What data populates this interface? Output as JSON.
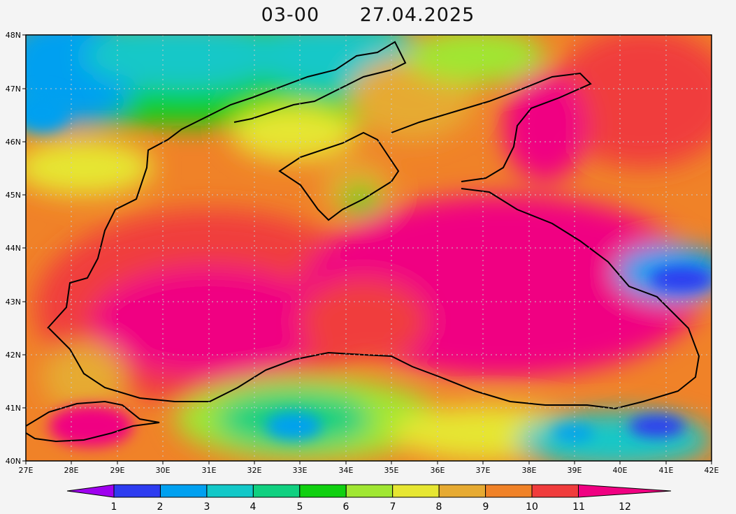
{
  "title": {
    "time": "03-00",
    "date": "27.04.2025"
  },
  "lat_labels": [
    "48N",
    "47N",
    "46N",
    "45N",
    "44N",
    "43N",
    "42N",
    "41N",
    "40N"
  ],
  "lon_labels": [
    "27E",
    "28E",
    "29E",
    "30E",
    "31E",
    "32E",
    "33E",
    "34E",
    "35E",
    "36E",
    "37E",
    "38E",
    "39E",
    "40E",
    "41E",
    "42E"
  ],
  "colorbar": {
    "labels": [
      "1",
      "2",
      "3",
      "4",
      "5",
      "6",
      "7",
      "8",
      "9",
      "10",
      "11",
      "12"
    ],
    "colors": [
      "#9f00ef",
      "#2d3cf0",
      "#00a0f0",
      "#12c8c8",
      "#10d080",
      "#10d010",
      "#a0e632",
      "#e6e632",
      "#e6aa32",
      "#f08228",
      "#f03c3c",
      "#f00082"
    ]
  }
}
